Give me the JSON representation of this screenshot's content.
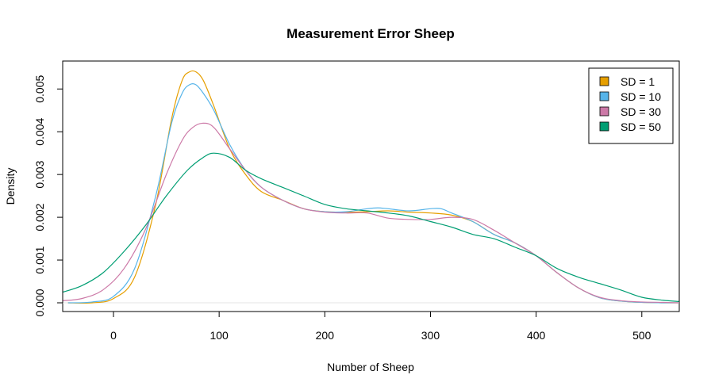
{
  "chart_data": {
    "type": "line",
    "title": "Measurement Error Sheep",
    "xlabel": "Number of Sheep",
    "ylabel": "Density",
    "xlim": [
      -48,
      535
    ],
    "ylim": [
      -0.0002,
      0.0057
    ],
    "x_ticks": [
      0,
      100,
      200,
      300,
      400,
      500
    ],
    "x_tick_labels": [
      "0",
      "100",
      "200",
      "300",
      "400",
      "500"
    ],
    "y_ticks": [
      0.0,
      0.001,
      0.002,
      0.003,
      0.004,
      0.005
    ],
    "y_tick_labels": [
      "0.000",
      "0.001",
      "0.002",
      "0.003",
      "0.004",
      "0.005"
    ],
    "legend_position": "top-right",
    "grid": false,
    "series": [
      {
        "name": "SD = 1",
        "color": "#E69F00",
        "x": [
          -43,
          -20,
          0,
          20,
          40,
          55,
          65,
          72,
          78,
          85,
          95,
          110,
          125,
          140,
          160,
          180,
          200,
          220,
          240,
          260,
          280,
          300,
          320,
          340,
          360,
          380,
          400,
          420,
          440,
          460,
          480,
          500,
          520,
          535
        ],
        "y": [
          0.0,
          0.0,
          0.0001,
          0.0006,
          0.0023,
          0.0043,
          0.0052,
          0.0054,
          0.0054,
          0.0052,
          0.0046,
          0.0036,
          0.003,
          0.0026,
          0.0024,
          0.0022,
          0.00213,
          0.00212,
          0.00213,
          0.00215,
          0.00212,
          0.0021,
          0.00205,
          0.0019,
          0.0016,
          0.0014,
          0.0011,
          0.0007,
          0.00035,
          0.00012,
          4e-05,
          1e-05,
          0.0,
          0.0
        ]
      },
      {
        "name": "SD = 10",
        "color": "#56B4E9",
        "x": [
          -43,
          -20,
          0,
          20,
          40,
          55,
          65,
          72,
          78,
          85,
          95,
          110,
          125,
          140,
          160,
          180,
          200,
          220,
          240,
          250,
          260,
          280,
          300,
          310,
          320,
          340,
          360,
          380,
          400,
          420,
          440,
          460,
          480,
          500,
          520,
          535
        ],
        "y": [
          0.0,
          2e-05,
          0.00015,
          0.0008,
          0.0025,
          0.0042,
          0.0049,
          0.0051,
          0.0051,
          0.0049,
          0.0045,
          0.0037,
          0.0031,
          0.0027,
          0.0024,
          0.0022,
          0.00213,
          0.00213,
          0.0022,
          0.00222,
          0.0022,
          0.00215,
          0.0022,
          0.0022,
          0.0021,
          0.0019,
          0.0016,
          0.0014,
          0.0011,
          0.0007,
          0.00035,
          0.00012,
          4e-05,
          1e-05,
          0.0,
          0.0
        ]
      },
      {
        "name": "SD = 30",
        "color": "#CC79A7",
        "x": [
          -48,
          -30,
          -10,
          10,
          30,
          50,
          65,
          75,
          85,
          95,
          110,
          125,
          140,
          160,
          180,
          200,
          220,
          240,
          260,
          280,
          300,
          320,
          340,
          360,
          380,
          400,
          420,
          440,
          460,
          480,
          500,
          520,
          535
        ],
        "y": [
          5e-05,
          0.0001,
          0.0003,
          0.0008,
          0.0017,
          0.003,
          0.0038,
          0.0041,
          0.0042,
          0.0041,
          0.0036,
          0.0031,
          0.0027,
          0.0024,
          0.0022,
          0.00212,
          0.0021,
          0.0021,
          0.00198,
          0.00195,
          0.00195,
          0.002,
          0.00195,
          0.0017,
          0.0014,
          0.0011,
          0.0007,
          0.00035,
          0.00013,
          5e-05,
          2e-05,
          1e-05,
          0.0
        ]
      },
      {
        "name": "SD = 50",
        "color": "#009E73",
        "x": [
          -48,
          -30,
          -10,
          10,
          30,
          50,
          70,
          85,
          95,
          110,
          125,
          140,
          160,
          180,
          200,
          220,
          240,
          260,
          280,
          300,
          320,
          340,
          360,
          380,
          400,
          420,
          440,
          460,
          480,
          500,
          520,
          535
        ],
        "y": [
          0.00025,
          0.0004,
          0.0007,
          0.0012,
          0.0018,
          0.0025,
          0.0031,
          0.0034,
          0.0035,
          0.0034,
          0.0031,
          0.0029,
          0.0027,
          0.0025,
          0.0023,
          0.0022,
          0.00215,
          0.0021,
          0.00203,
          0.0019,
          0.00177,
          0.0016,
          0.0015,
          0.0013,
          0.0011,
          0.0008,
          0.0006,
          0.00045,
          0.0003,
          0.00013,
          6e-05,
          3e-05
        ]
      }
    ]
  }
}
